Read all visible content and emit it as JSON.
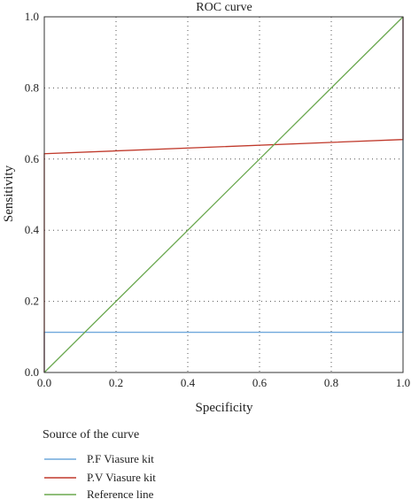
{
  "chart_data": {
    "type": "line",
    "title": "ROC curve",
    "xlabel": "Specificity",
    "ylabel": "Sensitivity",
    "xlim": [
      0.0,
      1.0
    ],
    "ylim": [
      0.0,
      1.0
    ],
    "x_ticks": [
      "0.0",
      "0.2",
      "0.4",
      "0.6",
      "0.8",
      "1.0"
    ],
    "y_ticks": [
      "0.0",
      "0.2",
      "0.4",
      "0.6",
      "0.8",
      "1.0"
    ],
    "grid": true,
    "legend_title": "Source of the curve",
    "legend_position": "bottom-left",
    "series": [
      {
        "name": "P.F Viasure kit",
        "color": "#6fa8dc",
        "x": [
          0.0,
          0.0,
          1.0,
          1.0
        ],
        "y": [
          0.0,
          0.113,
          0.113,
          1.0
        ]
      },
      {
        "name": "P.V Viasure kit",
        "color": "#c0392b",
        "x": [
          0.0,
          0.0,
          1.0,
          1.0
        ],
        "y": [
          0.0,
          0.615,
          0.655,
          1.0
        ]
      },
      {
        "name": "Reference line",
        "color": "#6aa84f",
        "x": [
          0.0,
          1.0
        ],
        "y": [
          0.0,
          1.0
        ]
      }
    ]
  }
}
